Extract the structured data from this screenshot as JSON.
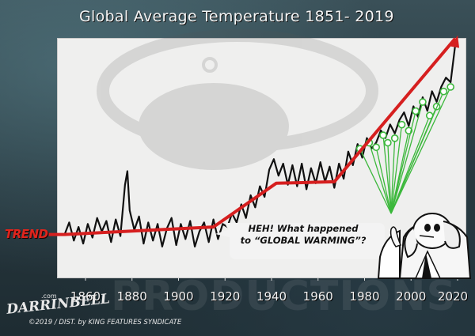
{
  "title": "Global Average Temperature 1851- 2019",
  "trend_label": "TREND",
  "speech_line1": "HEH! What happened",
  "speech_line2": "to “GLOBAL WARMING”?",
  "watermark": "PRODUCTIONS",
  "artist_name": "DARRINBELL",
  "artist_suffix": ".com",
  "credit": "©2019 / DIST. by KING FEATURES SYNDICATE",
  "colors": {
    "trend": "#d61f1f",
    "pointer": "#3cb83c",
    "line": "#111111"
  },
  "icons": {
    "elephant": "elephant-icon",
    "watermark_logo": "elephant-logo-watermark"
  },
  "chart_data": {
    "type": "line",
    "title": "Global Average Temperature 1851- 2019",
    "xlabel": "",
    "ylabel": "",
    "xlim": [
      1851,
      2019
    ],
    "x_ticks": [
      1860,
      1880,
      1900,
      1920,
      1940,
      1960,
      1980,
      2000,
      2020
    ],
    "series": [
      {
        "x": [
          1851,
          1853,
          1855,
          1857,
          1859,
          1861,
          1863,
          1865,
          1867,
          1869,
          1871,
          1873,
          1875,
          1877,
          1878,
          1879,
          1881,
          1883,
          1885,
          1887,
          1889,
          1891,
          1893,
          1895,
          1897,
          1899,
          1901,
          1903,
          1905,
          1907,
          1909,
          1911,
          1913,
          1915,
          1917,
          1919,
          1921,
          1923,
          1925,
          1927,
          1929,
          1931,
          1933,
          1935,
          1937,
          1939,
          1941,
          1943,
          1945,
          1947,
          1949,
          1951,
          1953,
          1955,
          1957,
          1959,
          1961,
          1963,
          1965,
          1967,
          1969,
          1971,
          1973,
          1975,
          1977,
          1979,
          1981,
          1983,
          1985,
          1987,
          1989,
          1991,
          1993,
          1995,
          1997,
          1999,
          2001,
          2003,
          2005,
          2007,
          2009,
          2011,
          2013,
          2015,
          2017,
          2019
        ],
        "values": [
          -0.38,
          -0.3,
          -0.42,
          -0.33,
          -0.44,
          -0.31,
          -0.4,
          -0.27,
          -0.36,
          -0.29,
          -0.43,
          -0.28,
          -0.39,
          -0.05,
          0.04,
          -0.22,
          -0.35,
          -0.26,
          -0.44,
          -0.3,
          -0.42,
          -0.31,
          -0.46,
          -0.34,
          -0.27,
          -0.45,
          -0.31,
          -0.41,
          -0.29,
          -0.46,
          -0.36,
          -0.3,
          -0.43,
          -0.28,
          -0.41,
          -0.31,
          -0.33,
          -0.24,
          -0.3,
          -0.18,
          -0.27,
          -0.12,
          -0.2,
          -0.06,
          -0.13,
          0.05,
          0.12,
          0.01,
          0.09,
          -0.05,
          0.08,
          -0.06,
          0.09,
          -0.08,
          0.06,
          -0.04,
          0.1,
          -0.03,
          0.07,
          -0.07,
          0.09,
          -0.01,
          0.17,
          0.08,
          0.22,
          0.13,
          0.26,
          0.19,
          0.23,
          0.31,
          0.26,
          0.35,
          0.29,
          0.38,
          0.43,
          0.34,
          0.47,
          0.4,
          0.53,
          0.44,
          0.57,
          0.5,
          0.6,
          0.66,
          0.63,
          0.88
        ]
      },
      {
        "name": "TREND",
        "x": [
          1851,
          1915,
          1942,
          1967,
          2019
        ],
        "values": [
          -0.38,
          -0.33,
          -0.04,
          -0.03,
          0.92
        ]
      }
    ],
    "highlighted_years": [
      1978,
      1982,
      1985,
      1988,
      1990,
      1993,
      1996,
      1999,
      2002,
      2005,
      2008,
      2011,
      2014,
      2017
    ],
    "grid": false,
    "legend": "none"
  }
}
